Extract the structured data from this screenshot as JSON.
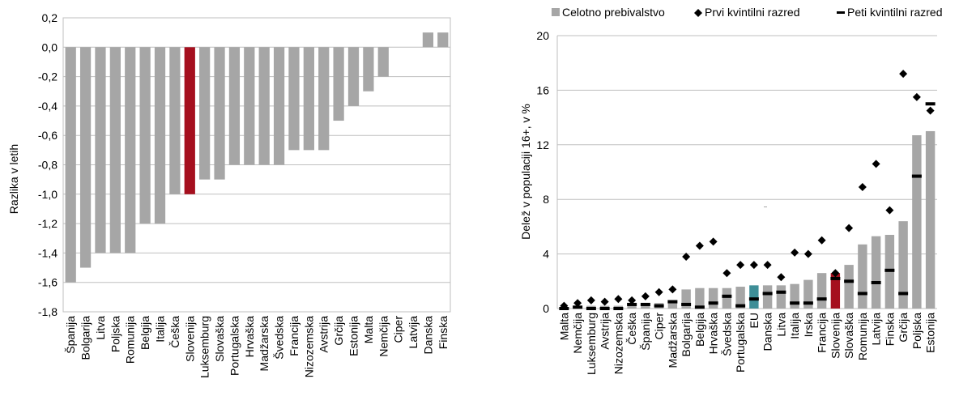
{
  "chart_data": [
    {
      "type": "bar",
      "title": "",
      "xlabel": "",
      "ylabel": "Razlika v letih",
      "ylim": [
        -1.8,
        0.2
      ],
      "yticks": [
        0.2,
        0.0,
        -0.2,
        -0.4,
        -0.6,
        -0.8,
        -1.0,
        -1.2,
        -1.4,
        -1.6,
        -1.8
      ],
      "ytick_labels": [
        "0,2",
        "0,0",
        "-0,2",
        "-0,4",
        "-0,6",
        "-0,8",
        "-1,0",
        "-1,2",
        "-1,4",
        "-1,6",
        "-1,8"
      ],
      "grid": true,
      "categories": [
        "Španija",
        "Bolgarija",
        "Litva",
        "Poljska",
        "Romunija",
        "Belgija",
        "Italija",
        "Češka",
        "Slovenija",
        "Luksemburg",
        "Slovaška",
        "Portugalska",
        "Hrvaška",
        "Madžarska",
        "Švedska",
        "Francija",
        "Nizozemska",
        "Avstrija",
        "Grčija",
        "Estonija",
        "Malta",
        "Nemčija",
        "Ciper",
        "Latvija",
        "Danska",
        "Finska"
      ],
      "values": [
        -1.6,
        -1.5,
        -1.4,
        -1.4,
        -1.4,
        -1.2,
        -1.2,
        -1.0,
        -1.0,
        -0.9,
        -0.9,
        -0.8,
        -0.8,
        -0.8,
        -0.8,
        -0.7,
        -0.7,
        -0.7,
        -0.5,
        -0.4,
        -0.3,
        -0.2,
        0.0,
        0.0,
        0.1,
        0.1
      ],
      "colors": {
        "default": "#a6a6a6",
        "highlight": "#a50f1e"
      },
      "highlight": [
        "Slovenija"
      ]
    },
    {
      "type": "bar",
      "title": "",
      "xlabel": "",
      "ylabel": "Delež v populaciji 16+, v %",
      "ylim": [
        0,
        20
      ],
      "yticks": [
        0,
        4,
        8,
        12,
        16,
        20
      ],
      "ytick_labels": [
        "0",
        "4",
        "8",
        "12",
        "16",
        "20"
      ],
      "grid": true,
      "legend": "top",
      "categories": [
        "Malta",
        "Nemčija",
        "Luksemburg",
        "Avstrija",
        "Nizozemska",
        "Češka",
        "Španija",
        "Ciper",
        "Madžarska",
        "Bolgarija",
        "Belgija",
        "Hrvaška",
        "Švedska",
        "Portugalska",
        "EU",
        "Danska",
        "Litva",
        "Italija",
        "Irska",
        "Francija",
        "Slovenija",
        "Slovaška",
        "Romunija",
        "Latvija",
        "Finska",
        "Grčija",
        "Poljska",
        "Estonija"
      ],
      "series": [
        {
          "name": "Celotno prebivalstvo",
          "mark": "bar",
          "values": [
            0.1,
            0.2,
            0.2,
            0.2,
            0.2,
            0.4,
            0.4,
            0.4,
            0.6,
            1.4,
            1.5,
            1.5,
            1.5,
            1.6,
            1.7,
            1.7,
            1.7,
            1.8,
            2.1,
            2.6,
            2.6,
            3.2,
            4.7,
            5.3,
            5.4,
            6.4,
            12.7,
            13.0
          ]
        },
        {
          "name": "Prvi kvintilni razred",
          "mark": "diamond",
          "values": [
            0.2,
            0.4,
            0.6,
            0.5,
            0.7,
            0.6,
            0.9,
            1.2,
            1.4,
            3.8,
            4.6,
            4.9,
            2.6,
            3.2,
            3.2,
            3.2,
            2.3,
            4.1,
            4.0,
            5.0,
            2.6,
            5.9,
            8.9,
            10.6,
            7.2,
            17.2,
            15.5,
            14.5
          ]
        },
        {
          "name": "Peti kvintilni razred",
          "mark": "dash",
          "values": [
            0.0,
            0.1,
            0.0,
            0.0,
            0.0,
            0.3,
            0.3,
            0.2,
            0.5,
            0.3,
            0.1,
            0.4,
            0.9,
            0.2,
            0.7,
            1.1,
            1.2,
            0.4,
            0.4,
            0.7,
            2.2,
            2.0,
            1.1,
            1.9,
            2.8,
            1.1,
            9.7,
            15.0
          ]
        }
      ],
      "colors": {
        "default": "#a6a6a6",
        "eu": "#3e8e97",
        "highlight": "#a50f1e",
        "marker": "#000000"
      },
      "highlight_eu": [
        "EU"
      ],
      "highlight": [
        "Slovenija"
      ]
    }
  ]
}
